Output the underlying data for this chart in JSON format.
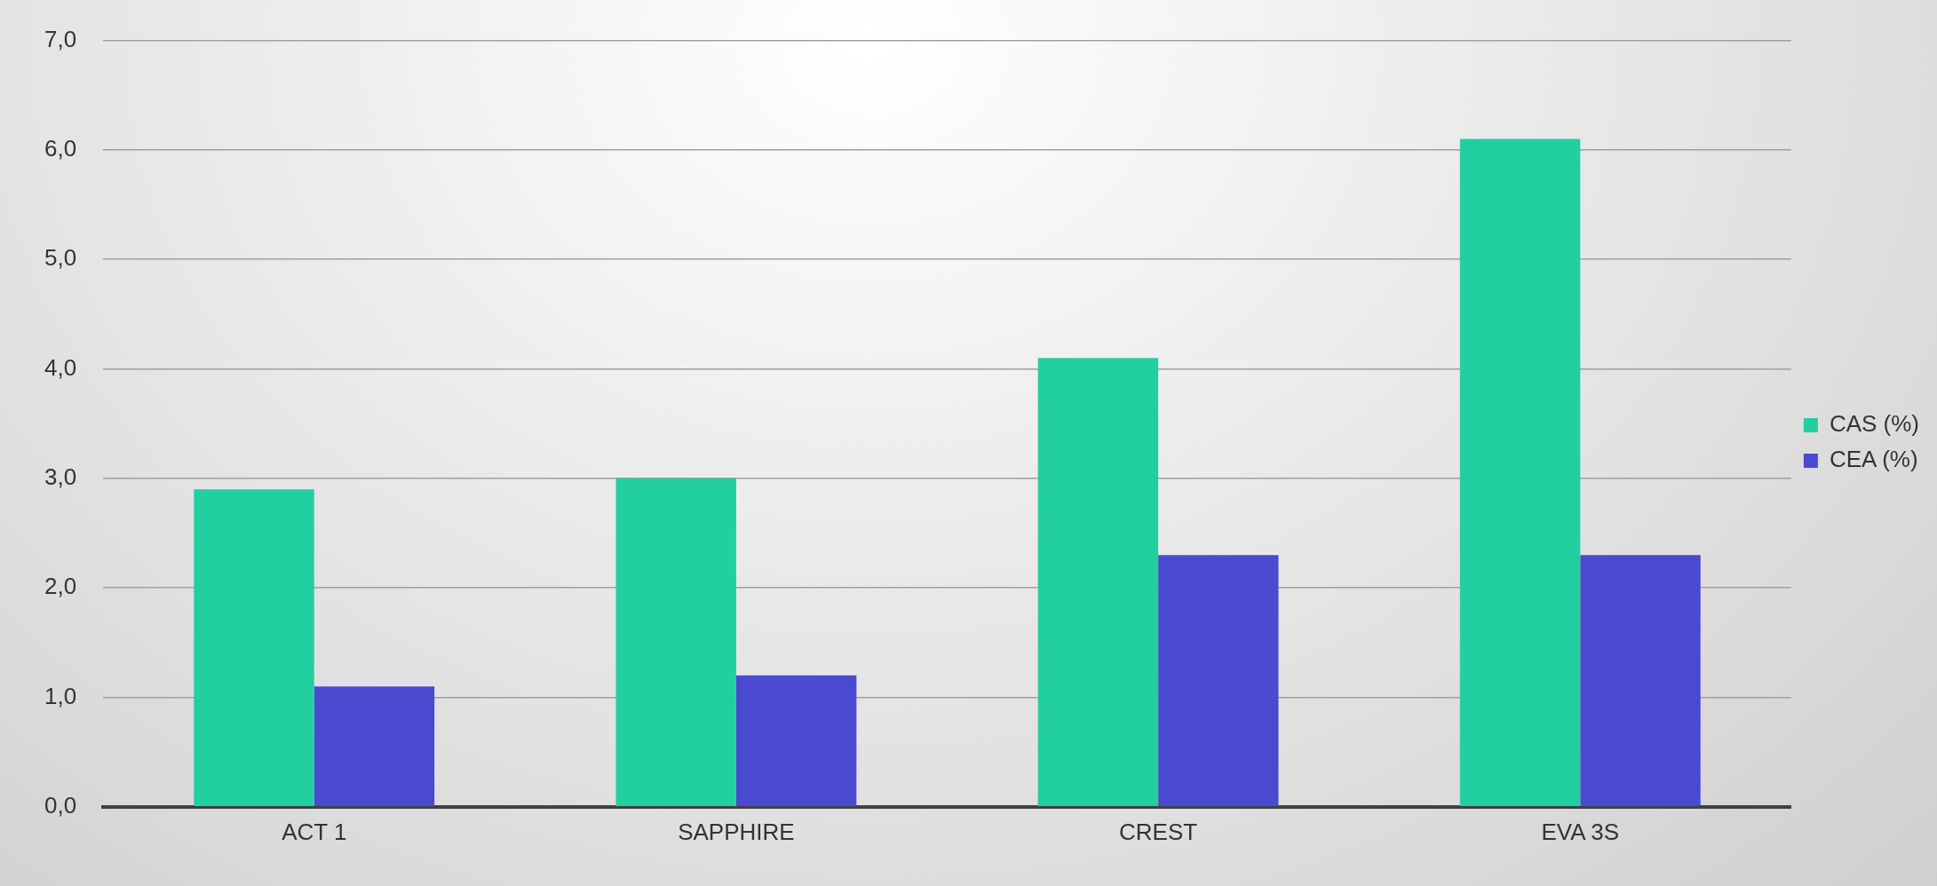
{
  "chart_data": {
    "type": "bar",
    "categories": [
      "ACT 1",
      "SAPPHIRE",
      "CREST",
      "EVA 3S"
    ],
    "series": [
      {
        "name": "CAS (%)",
        "color": "#22cfa0",
        "values": [
          2.9,
          3.0,
          4.1,
          6.1
        ]
      },
      {
        "name": "CEA (%)",
        "color": "#4a4ad0",
        "values": [
          1.1,
          1.2,
          2.3,
          2.3
        ]
      }
    ],
    "ylim": [
      0,
      7
    ],
    "yticks": [
      {
        "value": 0,
        "label": "0,0"
      },
      {
        "value": 1,
        "label": "1,0"
      },
      {
        "value": 2,
        "label": "2,0"
      },
      {
        "value": 3,
        "label": "3,0"
      },
      {
        "value": 4,
        "label": "4,0"
      },
      {
        "value": 5,
        "label": "5,0"
      },
      {
        "value": 6,
        "label": "6,0"
      },
      {
        "value": 7,
        "label": "7,0"
      }
    ],
    "grid": "y",
    "legend": "right"
  }
}
